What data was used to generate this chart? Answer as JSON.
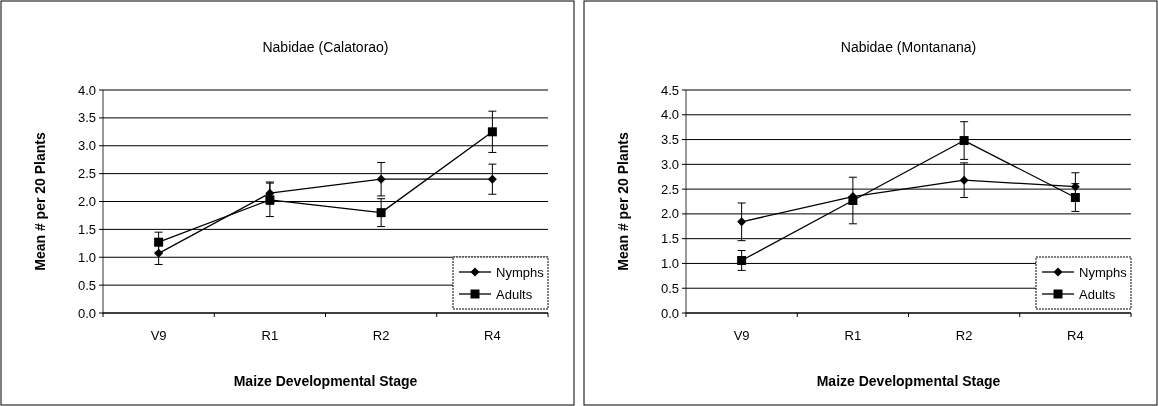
{
  "chart_data": [
    {
      "type": "line",
      "title": "Nabidae (Calatorao)",
      "xlabel": "Maize Developmental Stage",
      "ylabel": "Mean # per 20 Plants",
      "categories": [
        "V9",
        "R1",
        "R2",
        "R4"
      ],
      "ylim": [
        0,
        4
      ],
      "yticks": [
        {
          "value": 0,
          "label": "0.0"
        },
        {
          "value": 0.5,
          "label": "0.5"
        },
        {
          "value": 1,
          "label": "1.0"
        },
        {
          "value": 1.5,
          "label": "1.5"
        },
        {
          "value": 2,
          "label": "2.0"
        },
        {
          "value": 2.5,
          "label": "2.5"
        },
        {
          "value": 3,
          "label": "3.0"
        },
        {
          "value": 3.5,
          "label": "3.5"
        },
        {
          "value": 4,
          "label": "4.0"
        }
      ],
      "grid": "y",
      "legend": "bottom right",
      "line_style": "solid",
      "series": [
        {
          "name": "Nymphs",
          "color": "#000000",
          "marker": "diamond",
          "values": [
            1.07,
            2.15,
            2.4,
            2.4
          ],
          "errors": [
            0.2,
            0.2,
            0.3,
            0.27
          ]
        },
        {
          "name": "Adults",
          "color": "#000000",
          "marker": "square",
          "values": [
            1.27,
            2.03,
            1.8,
            3.25
          ],
          "errors": [
            0.18,
            0.3,
            0.25,
            0.37
          ]
        }
      ]
    },
    {
      "type": "line",
      "title": "Nabidae (Montanana)",
      "xlabel": "Maize Developmental Stage",
      "ylabel": "Mean # per 20 Plants",
      "categories": [
        "V9",
        "R1",
        "R2",
        "R4"
      ],
      "ylim": [
        0,
        4.5
      ],
      "yticks": [
        {
          "value": 0,
          "label": "0.0"
        },
        {
          "value": 0.5,
          "label": "0.5"
        },
        {
          "value": 1,
          "label": "1.0"
        },
        {
          "value": 1.5,
          "label": "1.5"
        },
        {
          "value": 2,
          "label": "2.0"
        },
        {
          "value": 2.5,
          "label": "2.5"
        },
        {
          "value": 3,
          "label": "3.0"
        },
        {
          "value": 3.5,
          "label": "3.5"
        },
        {
          "value": 4,
          "label": "4.0"
        },
        {
          "value": 4.5,
          "label": "4.5"
        }
      ],
      "grid": "y",
      "legend": "bottom right",
      "line_style": "solid",
      "series": [
        {
          "name": "Nymphs",
          "color": "#000000",
          "marker": "diamond",
          "values": [
            1.84,
            2.35,
            2.68,
            2.55
          ],
          "errors": [
            0.38,
            null,
            0.35,
            0.28
          ]
        },
        {
          "name": "Adults",
          "color": "#000000",
          "marker": "square",
          "values": [
            1.06,
            2.27,
            3.48,
            2.33
          ],
          "errors": [
            0.2,
            0.47,
            0.38,
            0.28
          ]
        }
      ]
    }
  ]
}
